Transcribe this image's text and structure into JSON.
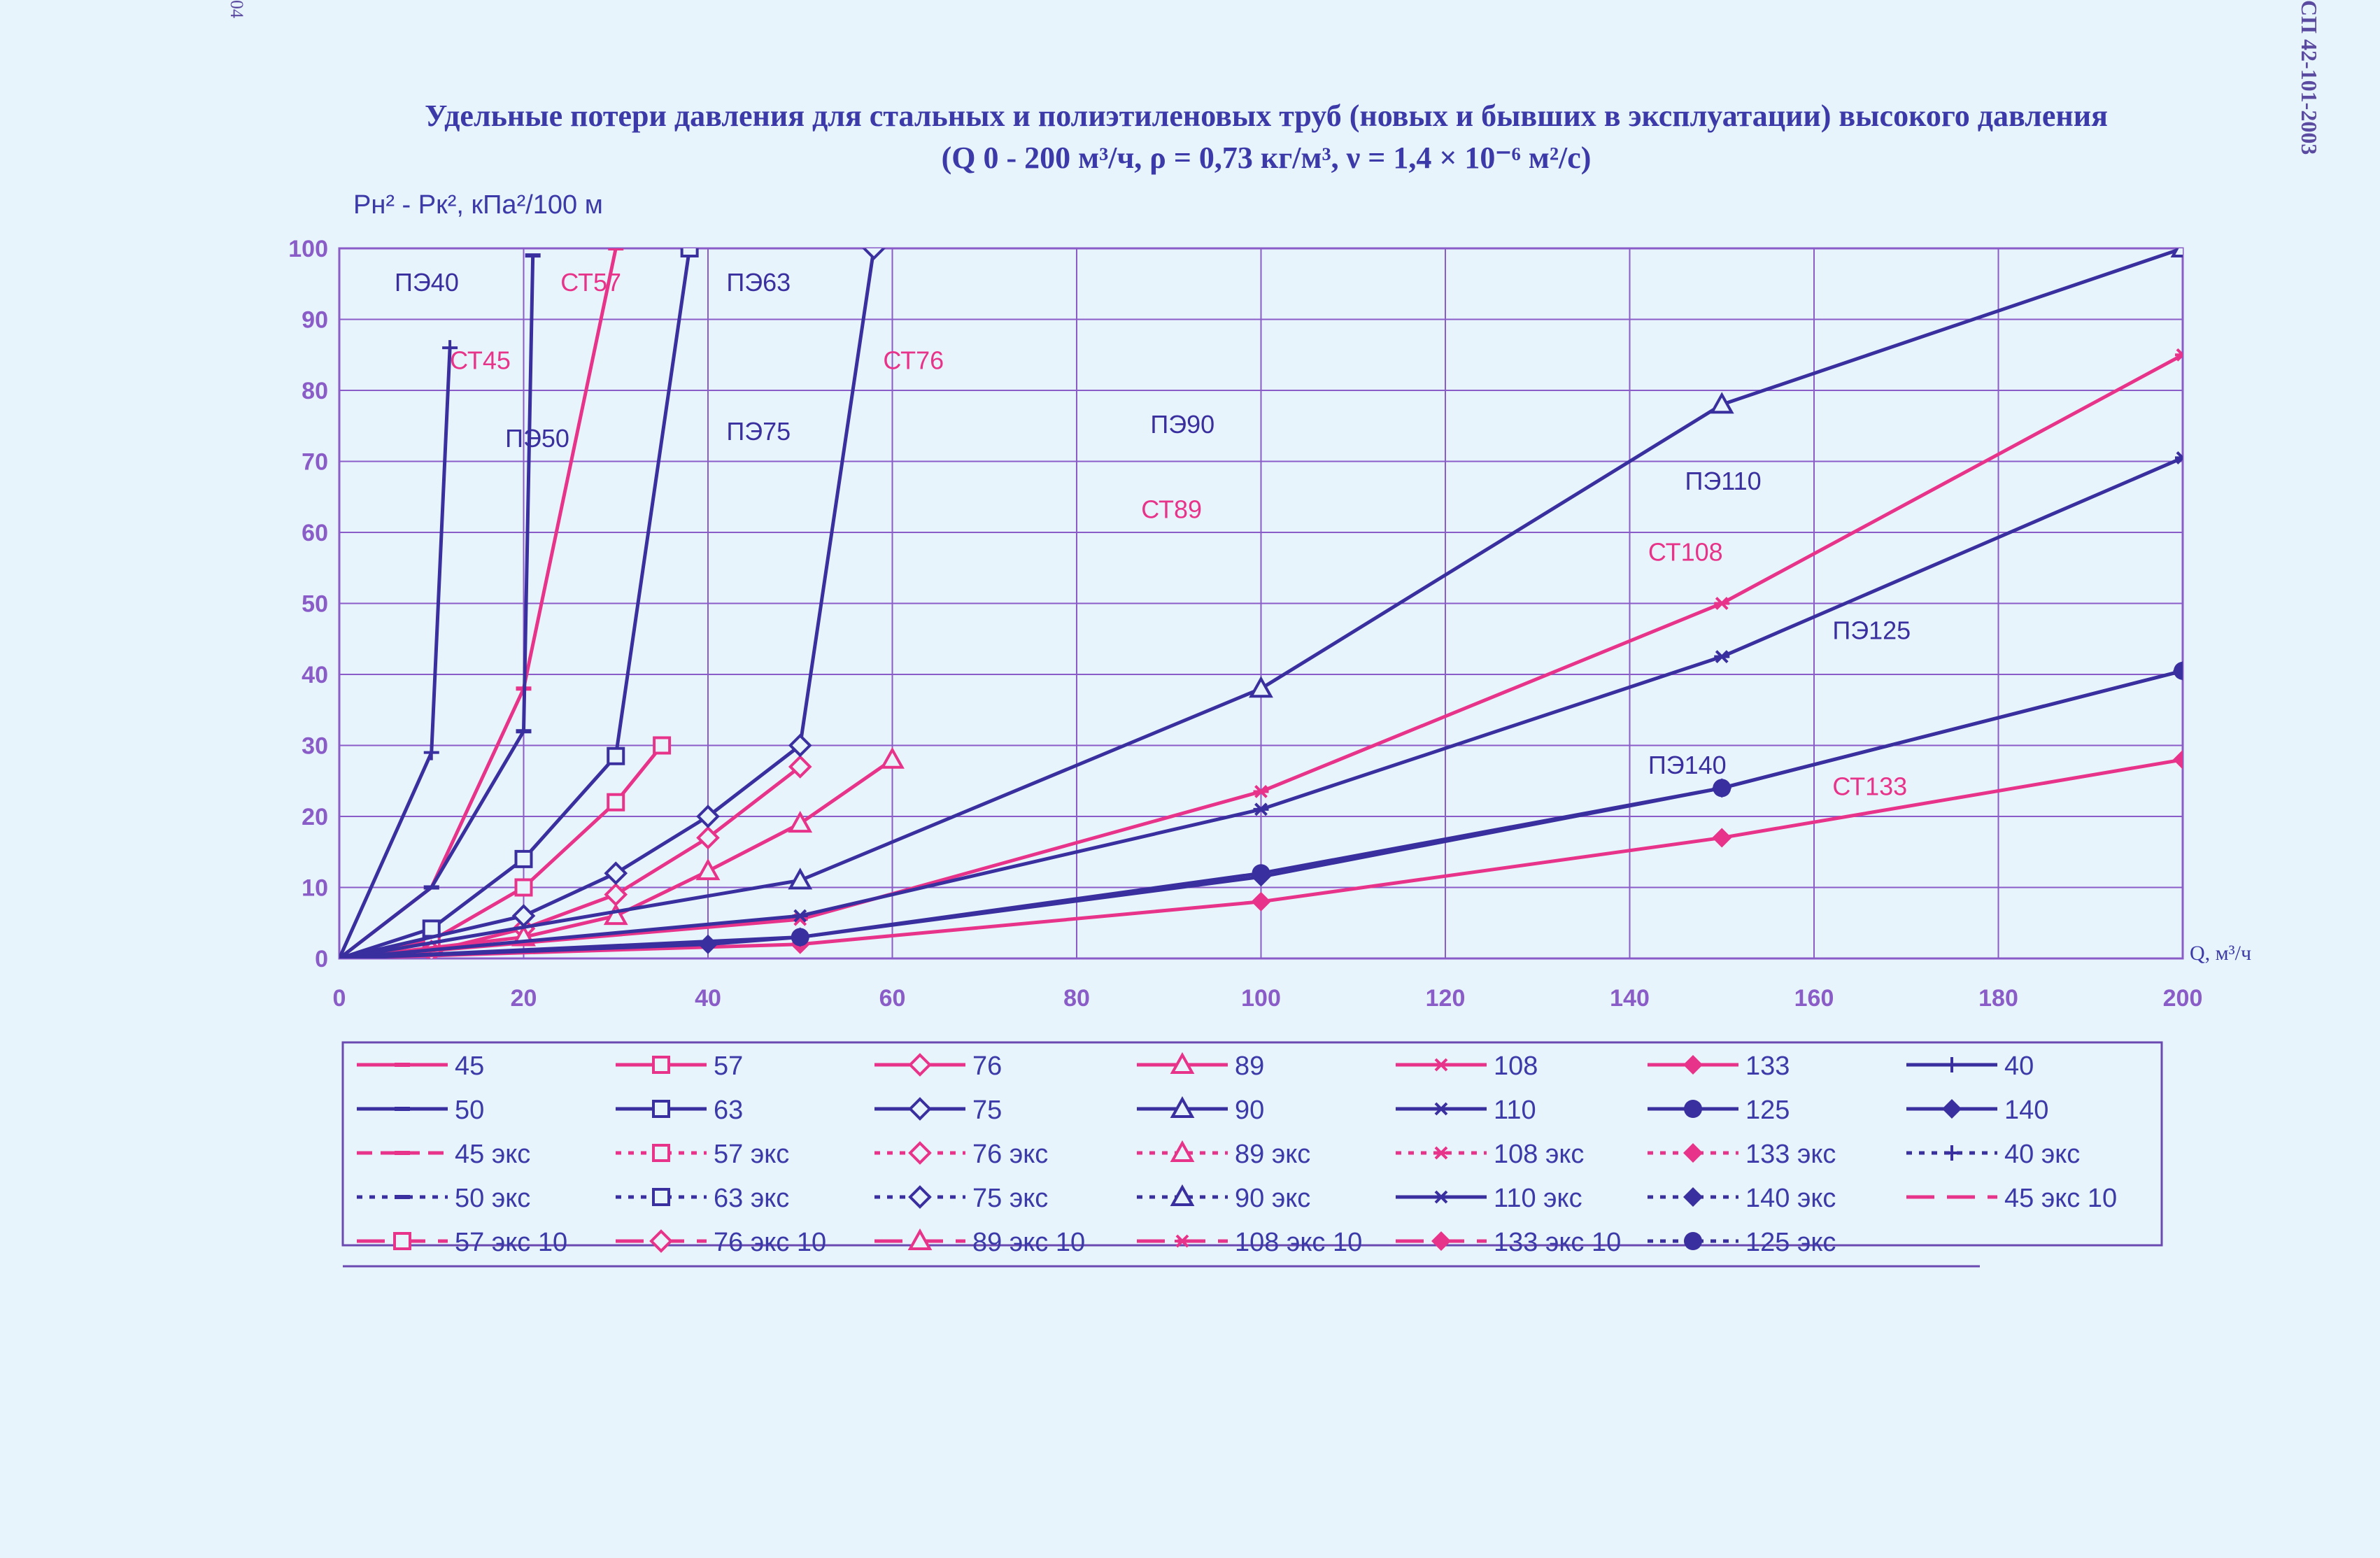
{
  "page": {
    "side_label": "СП 42-101-2003",
    "page_corner": "04",
    "title_line1": "Удельные потери давления для стальных и полиэтиленовых труб (новых и бывших в эксплуатации) высокого давления",
    "title_line2": "(Q 0 - 200 м³/ч, ρ = 0,73 кг/м³, ν = 1,4 × 10⁻⁶ м²/с)"
  },
  "colors": {
    "steel": "#e8338a",
    "pe": "#3a2f9e",
    "grid": "#8a5cc7",
    "frame": "#6a4ab0"
  },
  "chart_data": {
    "type": "line",
    "ylabel": "Pн² - Pк², кПа²/100 м",
    "xlabel": "Q, м³/ч",
    "xlim": [
      0,
      200
    ],
    "ylim": [
      0,
      100
    ],
    "xticks": [
      0,
      20,
      40,
      60,
      80,
      100,
      120,
      140,
      160,
      180,
      200
    ],
    "yticks": [
      0,
      10,
      20,
      30,
      40,
      50,
      60,
      70,
      80,
      90,
      100
    ],
    "grid": true,
    "legend": "bottom",
    "annotations": [
      {
        "text": "ПЭ40",
        "x": 6,
        "y": 94,
        "color": "pe"
      },
      {
        "text": "СТ45",
        "x": 12,
        "y": 83,
        "color": "steel"
      },
      {
        "text": "СТ57",
        "x": 24,
        "y": 94,
        "color": "steel"
      },
      {
        "text": "ПЭ50",
        "x": 18,
        "y": 72,
        "color": "pe"
      },
      {
        "text": "ПЭ63",
        "x": 42,
        "y": 94,
        "color": "pe"
      },
      {
        "text": "ПЭ75",
        "x": 42,
        "y": 73,
        "color": "pe"
      },
      {
        "text": "СТ76",
        "x": 59,
        "y": 83,
        "color": "steel"
      },
      {
        "text": "ПЭ90",
        "x": 88,
        "y": 74,
        "color": "pe"
      },
      {
        "text": "СТ89",
        "x": 87,
        "y": 62,
        "color": "steel"
      },
      {
        "text": "ПЭ110",
        "x": 146,
        "y": 66,
        "color": "pe"
      },
      {
        "text": "СТ108",
        "x": 142,
        "y": 56,
        "color": "steel"
      },
      {
        "text": "ПЭ125",
        "x": 162,
        "y": 45,
        "color": "pe"
      },
      {
        "text": "ПЭ140",
        "x": 142,
        "y": 26,
        "color": "pe"
      },
      {
        "text": "СТ133",
        "x": 162,
        "y": 23,
        "color": "steel"
      }
    ],
    "series": [
      {
        "name": "45",
        "color": "steel",
        "dash": "solid",
        "marker": "dash",
        "x": [
          0,
          10,
          20,
          30
        ],
        "y": [
          0,
          10,
          38,
          100
        ]
      },
      {
        "name": "57",
        "color": "steel",
        "dash": "solid",
        "marker": "square",
        "x": [
          0,
          10,
          20,
          30,
          35
        ],
        "y": [
          0,
          2.5,
          10,
          22,
          30
        ]
      },
      {
        "name": "76",
        "color": "steel",
        "dash": "solid",
        "marker": "diamond-open",
        "x": [
          0,
          10,
          20,
          30,
          40,
          50
        ],
        "y": [
          0,
          1,
          4.2,
          9,
          17,
          27
        ]
      },
      {
        "name": "89",
        "color": "steel",
        "dash": "solid",
        "marker": "triangle",
        "x": [
          0,
          20,
          30,
          40,
          50,
          60
        ],
        "y": [
          0,
          3,
          6,
          12.3,
          19,
          28
        ]
      },
      {
        "name": "108",
        "color": "steel",
        "dash": "solid",
        "marker": "asterisk",
        "x": [
          0,
          50,
          100,
          150,
          200
        ],
        "y": [
          0,
          5.5,
          23.5,
          50,
          85
        ]
      },
      {
        "name": "133",
        "color": "steel",
        "dash": "solid",
        "marker": "diamond",
        "x": [
          0,
          50,
          100,
          150,
          200
        ],
        "y": [
          0,
          2,
          8,
          17,
          28
        ]
      },
      {
        "name": "40",
        "color": "pe",
        "dash": "solid",
        "marker": "plus",
        "x": [
          0,
          10,
          12
        ],
        "y": [
          0,
          29,
          86
        ]
      },
      {
        "name": "50",
        "color": "pe",
        "dash": "solid",
        "marker": "dash",
        "x": [
          0,
          10,
          20,
          21
        ],
        "y": [
          0,
          10,
          32,
          99
        ]
      },
      {
        "name": "63",
        "color": "pe",
        "dash": "solid",
        "marker": "square",
        "x": [
          0,
          10,
          20,
          30,
          38
        ],
        "y": [
          0,
          4.2,
          14,
          28.5,
          100
        ]
      },
      {
        "name": "75",
        "color": "pe",
        "dash": "solid",
        "marker": "diamond-open",
        "x": [
          0,
          20,
          30,
          40,
          50,
          58
        ],
        "y": [
          0,
          6,
          12,
          20,
          30,
          100
        ]
      },
      {
        "name": "90",
        "color": "pe",
        "dash": "solid",
        "marker": "triangle",
        "x": [
          0,
          50,
          100,
          150,
          200
        ],
        "y": [
          0,
          11,
          38,
          78,
          100
        ]
      },
      {
        "name": "110",
        "color": "pe",
        "dash": "solid",
        "marker": "asterisk",
        "x": [
          0,
          50,
          100,
          150,
          200
        ],
        "y": [
          0,
          6,
          21,
          42.5,
          70.5
        ]
      },
      {
        "name": "125",
        "color": "pe",
        "dash": "solid",
        "marker": "circle",
        "x": [
          0,
          50,
          100,
          150,
          200
        ],
        "y": [
          0,
          3,
          12,
          24,
          40.5
        ]
      },
      {
        "name": "140",
        "color": "pe",
        "dash": "solid",
        "marker": "diamond",
        "x": [
          0,
          40,
          50,
          100,
          150,
          200
        ],
        "y": [
          0,
          2,
          3,
          11.5,
          24,
          40.5
        ]
      }
    ],
    "legend_entries": [
      {
        "label": "45",
        "color": "steel",
        "dash": "solid",
        "marker": "dash"
      },
      {
        "label": "57",
        "color": "steel",
        "dash": "solid",
        "marker": "square"
      },
      {
        "label": "76",
        "color": "steel",
        "dash": "solid",
        "marker": "diamond-open"
      },
      {
        "label": "89",
        "color": "steel",
        "dash": "solid",
        "marker": "triangle"
      },
      {
        "label": "108",
        "color": "steel",
        "dash": "solid",
        "marker": "asterisk"
      },
      {
        "label": "133",
        "color": "steel",
        "dash": "solid",
        "marker": "diamond"
      },
      {
        "label": "40",
        "color": "pe",
        "dash": "solid",
        "marker": "plus"
      },
      {
        "label": "50",
        "color": "pe",
        "dash": "solid",
        "marker": "dash"
      },
      {
        "label": "63",
        "color": "pe",
        "dash": "solid",
        "marker": "square"
      },
      {
        "label": "75",
        "color": "pe",
        "dash": "solid",
        "marker": "diamond-open"
      },
      {
        "label": "90",
        "color": "pe",
        "dash": "solid",
        "marker": "triangle"
      },
      {
        "label": "110",
        "color": "pe",
        "dash": "solid",
        "marker": "asterisk"
      },
      {
        "label": "125",
        "color": "pe",
        "dash": "solid",
        "marker": "circle"
      },
      {
        "label": "140",
        "color": "pe",
        "dash": "solid",
        "marker": "diamond"
      },
      {
        "label": "45 экс",
        "color": "steel",
        "dash": "dashed",
        "marker": "dash"
      },
      {
        "label": "57 экс",
        "color": "steel",
        "dash": "dotted",
        "marker": "square"
      },
      {
        "label": "76 экс",
        "color": "steel",
        "dash": "dotted",
        "marker": "diamond-open"
      },
      {
        "label": "89 экс",
        "color": "steel",
        "dash": "dotted",
        "marker": "triangle"
      },
      {
        "label": "108 экс",
        "color": "steel",
        "dash": "dotted",
        "marker": "asterisk"
      },
      {
        "label": "133 экс",
        "color": "steel",
        "dash": "dotted",
        "marker": "diamond"
      },
      {
        "label": "40 экс",
        "color": "pe",
        "dash": "dotted",
        "marker": "plus"
      },
      {
        "label": "50 экс",
        "color": "pe",
        "dash": "dotted",
        "marker": "dash"
      },
      {
        "label": "63 экс",
        "color": "pe",
        "dash": "dotted",
        "marker": "square"
      },
      {
        "label": "75 экс",
        "color": "pe",
        "dash": "dotted",
        "marker": "diamond-open"
      },
      {
        "label": "90 экс",
        "color": "pe",
        "dash": "dotted",
        "marker": "triangle"
      },
      {
        "label": "110 экс",
        "color": "pe",
        "dash": "thin",
        "marker": "asterisk"
      },
      {
        "label": "140 экс",
        "color": "pe",
        "dash": "dotted",
        "marker": "diamond"
      },
      {
        "label": "45 экс 10",
        "color": "steel",
        "dash": "longdash",
        "marker": "none"
      },
      {
        "label": "57 экс 10",
        "color": "steel",
        "dash": "longdash",
        "marker": "square"
      },
      {
        "label": "76 экс 10",
        "color": "steel",
        "dash": "longdash",
        "marker": "diamond-open"
      },
      {
        "label": "89 экс 10",
        "color": "steel",
        "dash": "longdash",
        "marker": "triangle"
      },
      {
        "label": "108 экс 10",
        "color": "steel",
        "dash": "longdash",
        "marker": "asterisk"
      },
      {
        "label": "133 экс 10",
        "color": "steel",
        "dash": "longdash",
        "marker": "diamond"
      },
      {
        "label": "125 экс",
        "color": "pe",
        "dash": "dotted",
        "marker": "circle"
      }
    ]
  }
}
